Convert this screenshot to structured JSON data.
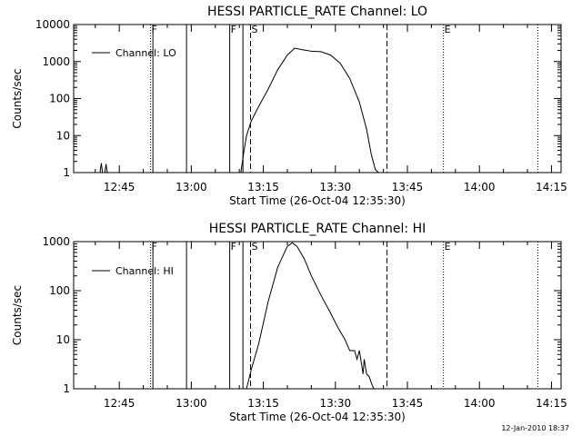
{
  "chart_data": [
    {
      "type": "line",
      "title": "HESSI PARTICLE_RATE Channel: LO",
      "xlabel": "Start Time (26-Oct-04 12:35:30)",
      "ylabel": "Counts/sec",
      "yscale": "log",
      "ylim": [
        1,
        10000
      ],
      "xlim": [
        "12:35:30",
        "14:17:00"
      ],
      "x_ticks": [
        "12:45",
        "13:00",
        "13:15",
        "13:30",
        "13:45",
        "14:00",
        "14:15"
      ],
      "y_ticks": [
        "1",
        "10",
        "100",
        "1000",
        "10000"
      ],
      "legend": {
        "entries": [
          "Channel: LO"
        ],
        "position": "top-left"
      },
      "event_markers": [
        {
          "label": "F",
          "time": "12:51:30",
          "style": "dotted"
        },
        {
          "label": "",
          "time": "12:52:00",
          "style": "solid"
        },
        {
          "label": "",
          "time": "12:59:00",
          "style": "solid"
        },
        {
          "label": "F",
          "time": "13:08:00",
          "style": "solid"
        },
        {
          "label": "",
          "time": "13:10:45",
          "style": "solid"
        },
        {
          "label": "S",
          "time": "13:12:20",
          "style": "dashed"
        },
        {
          "label": "",
          "time": "13:40:45",
          "style": "dashed"
        },
        {
          "label": "E",
          "time": "13:52:30",
          "style": "dotted"
        },
        {
          "label": "",
          "time": "14:12:10",
          "style": "dotted"
        }
      ],
      "series": [
        {
          "name": "Channel: LO",
          "x": [
            "12:41:00",
            "12:41:15",
            "12:41:30",
            "12:42:00",
            "12:42:15",
            "12:42:30",
            "13:10:20",
            "13:10:50",
            "13:11:30",
            "13:12:30",
            "13:14:00",
            "13:16:00",
            "13:18:00",
            "13:20:00",
            "13:21:30",
            "13:23:00",
            "13:25:00",
            "13:27:00",
            "13:29:00",
            "13:31:00",
            "13:33:00",
            "13:35:00",
            "13:36:30",
            "13:37:30",
            "13:38:20",
            "13:39:00"
          ],
          "y": [
            1,
            1.8,
            1,
            1,
            1.7,
            1,
            1,
            3,
            10,
            25,
            60,
            180,
            600,
            1500,
            2300,
            2100,
            1900,
            1850,
            1500,
            900,
            350,
            80,
            15,
            3,
            1.2,
            1
          ]
        }
      ]
    },
    {
      "type": "line",
      "title": "HESSI PARTICLE_RATE Channel: HI",
      "xlabel": "Start Time (26-Oct-04 12:35:30)",
      "ylabel": "Counts/sec",
      "yscale": "log",
      "ylim": [
        1,
        1000
      ],
      "xlim": [
        "12:35:30",
        "14:17:00"
      ],
      "x_ticks": [
        "12:45",
        "13:00",
        "13:15",
        "13:30",
        "13:45",
        "14:00",
        "14:15"
      ],
      "y_ticks": [
        "1",
        "10",
        "100",
        "1000"
      ],
      "legend": {
        "entries": [
          "Channel: HI"
        ],
        "position": "top-left"
      },
      "event_markers": [
        {
          "label": "F",
          "time": "12:51:30",
          "style": "dotted"
        },
        {
          "label": "",
          "time": "12:52:00",
          "style": "solid"
        },
        {
          "label": "",
          "time": "12:59:00",
          "style": "solid"
        },
        {
          "label": "F",
          "time": "13:08:00",
          "style": "solid"
        },
        {
          "label": "",
          "time": "13:10:45",
          "style": "solid"
        },
        {
          "label": "S",
          "time": "13:12:20",
          "style": "dashed"
        },
        {
          "label": "",
          "time": "13:40:45",
          "style": "dashed"
        },
        {
          "label": "E",
          "time": "13:52:30",
          "style": "dotted"
        },
        {
          "label": "",
          "time": "14:12:10",
          "style": "dotted"
        }
      ],
      "series": [
        {
          "name": "Channel: HI",
          "x": [
            "13:11:30",
            "13:12:30",
            "13:14:00",
            "13:16:00",
            "13:18:00",
            "13:20:00",
            "13:21:00",
            "13:22:00",
            "13:23:30",
            "13:25:00",
            "13:27:00",
            "13:29:00",
            "13:30:30",
            "13:32:00",
            "13:33:00",
            "13:34:00",
            "13:34:30",
            "13:35:00",
            "13:35:30",
            "13:35:45",
            "13:36:00",
            "13:36:30",
            "13:37:00",
            "13:37:30",
            "13:38:00"
          ],
          "y": [
            1,
            2.5,
            8,
            60,
            300,
            800,
            950,
            800,
            450,
            200,
            80,
            35,
            18,
            10,
            6,
            6,
            4,
            6,
            3,
            2,
            4,
            2,
            1.8,
            1.3,
            1
          ]
        }
      ]
    }
  ],
  "footer": {
    "timestamp": "12-Jan-2010 18:37"
  }
}
